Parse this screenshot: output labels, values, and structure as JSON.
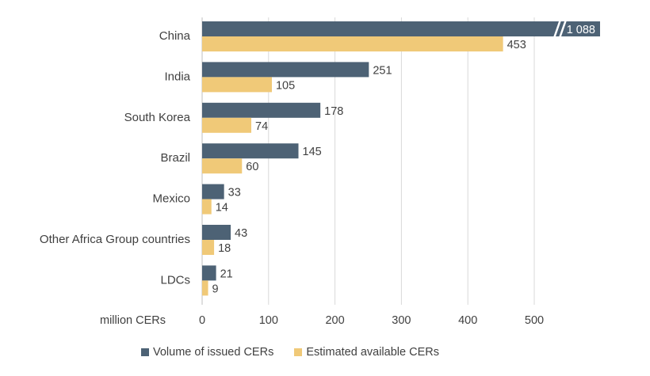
{
  "chart_data": {
    "type": "bar",
    "orientation": "horizontal",
    "categories": [
      "China",
      "India",
      "South Korea",
      "Brazil",
      "Mexico",
      "Other Africa Group countries",
      "LDCs"
    ],
    "series": [
      {
        "name": "Volume of issued CERs",
        "color": "#4d6275",
        "values": [
          1088,
          251,
          178,
          145,
          33,
          43,
          21
        ]
      },
      {
        "name": "Estimated available CERs",
        "color": "#f0c978",
        "values": [
          453,
          105,
          74,
          60,
          14,
          18,
          9
        ]
      }
    ],
    "value_labels": [
      [
        "1 088",
        "251",
        "178",
        "145",
        "33",
        "43",
        "21"
      ],
      [
        "453",
        "105",
        "74",
        "60",
        "14",
        "18",
        "9"
      ]
    ],
    "axis_break": {
      "series": 0,
      "category": "China"
    },
    "xlim": [
      0,
      600
    ],
    "xticks": [
      0,
      100,
      200,
      300,
      400,
      500
    ],
    "xlabel": "million CERs",
    "grid": true,
    "legend_position": "bottom"
  }
}
